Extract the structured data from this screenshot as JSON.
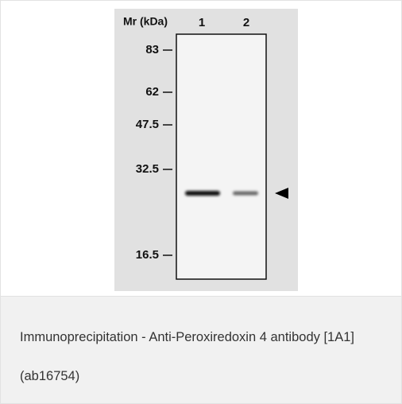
{
  "figure": {
    "axis_label": "Mr (kDa)",
    "lanes": [
      "1",
      "2"
    ],
    "markers": [
      "83",
      "62",
      "47.5",
      "32.5",
      "16.5"
    ]
  },
  "caption": "Immunoprecipitation - Anti-Peroxiredoxin 4 antibody [1A1] (ab16754)"
}
